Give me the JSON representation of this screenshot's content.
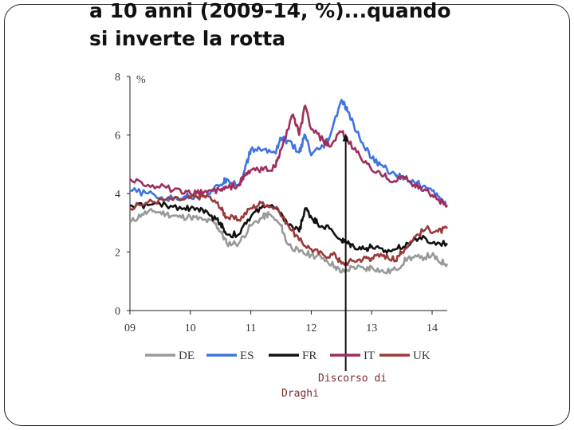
{
  "title": {
    "line1": "a 10 anni (2009-14, %)...quando",
    "line2": "si inverte la rotta"
  },
  "annotation": {
    "line1": "Discorso di",
    "line2": "Draghi",
    "event_x": 2012.57
  },
  "chart_data": {
    "type": "line",
    "title": "a 10 anni (2009-14, %)...quando si inverte la rotta",
    "ylabel": "%",
    "xlabel": "",
    "xlim": [
      2009.0,
      2014.25
    ],
    "ylim": [
      0,
      8
    ],
    "yticks": [
      "0",
      "2",
      "4",
      "6",
      "8"
    ],
    "xticks": [
      {
        "x": 2009,
        "label": "09"
      },
      {
        "x": 2010,
        "label": "10"
      },
      {
        "x": 2011,
        "label": "11"
      },
      {
        "x": 2012,
        "label": "12"
      },
      {
        "x": 2013,
        "label": "13"
      },
      {
        "x": 2014,
        "label": "14"
      }
    ],
    "grid": false,
    "legend_position": "bottom",
    "series": [
      {
        "name": "DE",
        "color": "#999999",
        "x": [
          2009.0,
          2009.2,
          2009.4,
          2009.6,
          2009.8,
          2010.0,
          2010.2,
          2010.4,
          2010.5,
          2010.6,
          2010.8,
          2011.0,
          2011.2,
          2011.3,
          2011.5,
          2011.6,
          2011.8,
          2012.0,
          2012.2,
          2012.4,
          2012.5,
          2012.7,
          2012.9,
          2013.0,
          2013.2,
          2013.4,
          2013.6,
          2013.8,
          2014.0,
          2014.1,
          2014.25
        ],
        "y": [
          3.0,
          3.3,
          3.4,
          3.3,
          3.2,
          3.2,
          3.1,
          3.0,
          2.7,
          2.3,
          2.3,
          2.9,
          3.2,
          3.3,
          2.9,
          2.3,
          2.0,
          1.9,
          1.8,
          1.5,
          1.3,
          1.5,
          1.4,
          1.5,
          1.3,
          1.4,
          1.8,
          1.8,
          1.9,
          1.7,
          1.6
        ]
      },
      {
        "name": "ES",
        "color": "#3f74e0",
        "x": [
          2009.0,
          2009.3,
          2009.6,
          2009.9,
          2010.1,
          2010.3,
          2010.5,
          2010.6,
          2010.8,
          2010.9,
          2011.0,
          2011.2,
          2011.4,
          2011.5,
          2011.6,
          2011.8,
          2011.9,
          2012.0,
          2012.2,
          2012.3,
          2012.5,
          2012.6,
          2012.8,
          2013.0,
          2013.2,
          2013.4,
          2013.5,
          2013.7,
          2013.9,
          2014.1,
          2014.25
        ],
        "y": [
          4.1,
          4.0,
          3.8,
          3.9,
          3.9,
          4.0,
          4.3,
          4.5,
          4.3,
          4.8,
          5.5,
          5.5,
          5.4,
          5.9,
          5.8,
          5.4,
          6.0,
          5.3,
          5.6,
          5.9,
          7.2,
          6.8,
          5.9,
          5.2,
          4.9,
          4.6,
          4.6,
          4.4,
          4.2,
          3.9,
          3.6
        ]
      },
      {
        "name": "FR",
        "color": "#111111",
        "x": [
          2009.0,
          2009.3,
          2009.6,
          2009.9,
          2010.1,
          2010.3,
          2010.5,
          2010.6,
          2010.8,
          2011.0,
          2011.2,
          2011.4,
          2011.6,
          2011.8,
          2011.9,
          2012.0,
          2012.1,
          2012.3,
          2012.5,
          2012.6,
          2012.7,
          2012.9,
          2013.0,
          2013.2,
          2013.4,
          2013.6,
          2013.8,
          2014.0,
          2014.25
        ],
        "y": [
          3.6,
          3.6,
          3.6,
          3.5,
          3.5,
          3.3,
          3.0,
          2.6,
          2.6,
          3.2,
          3.6,
          3.5,
          3.0,
          2.7,
          3.5,
          3.2,
          3.0,
          2.8,
          2.4,
          2.3,
          2.2,
          2.1,
          2.2,
          2.0,
          2.1,
          2.3,
          2.5,
          2.3,
          2.3
        ]
      },
      {
        "name": "IT",
        "color": "#a02d5e",
        "x": [
          2009.0,
          2009.3,
          2009.6,
          2009.9,
          2010.1,
          2010.3,
          2010.5,
          2010.6,
          2010.8,
          2010.9,
          2011.0,
          2011.2,
          2011.4,
          2011.5,
          2011.7,
          2011.8,
          2011.9,
          2012.0,
          2012.2,
          2012.3,
          2012.5,
          2012.6,
          2012.8,
          2013.0,
          2013.2,
          2013.4,
          2013.5,
          2013.7,
          2013.9,
          2014.1,
          2014.25
        ],
        "y": [
          4.5,
          4.3,
          4.2,
          4.0,
          4.0,
          4.1,
          4.1,
          4.2,
          4.3,
          4.6,
          4.8,
          4.8,
          4.9,
          5.5,
          6.7,
          6.0,
          7.0,
          6.2,
          5.8,
          5.6,
          6.1,
          5.8,
          5.3,
          4.8,
          4.6,
          4.4,
          4.6,
          4.3,
          4.1,
          3.8,
          3.6
        ]
      },
      {
        "name": "UK",
        "color": "#9b3a3a",
        "x": [
          2009.0,
          2009.3,
          2009.6,
          2009.9,
          2010.1,
          2010.3,
          2010.5,
          2010.6,
          2010.8,
          2011.0,
          2011.2,
          2011.4,
          2011.6,
          2011.8,
          2012.0,
          2012.2,
          2012.4,
          2012.5,
          2012.7,
          2012.9,
          2013.0,
          2013.2,
          2013.4,
          2013.5,
          2013.7,
          2013.9,
          2014.1,
          2014.25
        ],
        "y": [
          3.5,
          3.7,
          3.8,
          3.8,
          3.9,
          3.9,
          3.5,
          3.2,
          3.1,
          3.5,
          3.7,
          3.5,
          3.0,
          2.4,
          2.1,
          1.9,
          1.9,
          1.6,
          1.7,
          1.8,
          1.8,
          1.9,
          1.7,
          2.0,
          2.5,
          2.8,
          2.7,
          2.8
        ]
      }
    ]
  }
}
